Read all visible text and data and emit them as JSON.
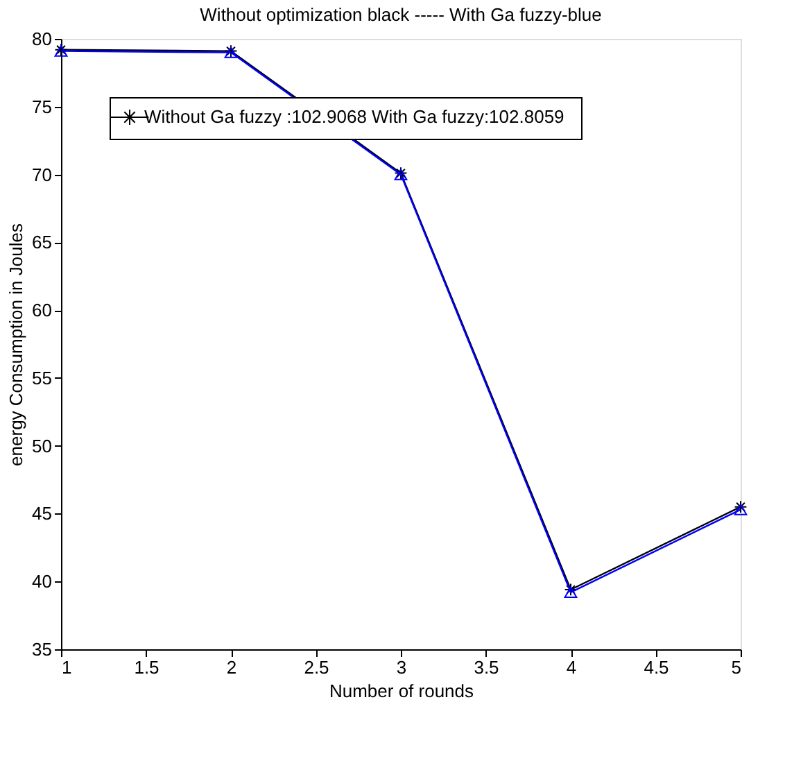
{
  "chart_data": {
    "type": "line",
    "title": "Without optimization black    ----- With Ga fuzzy-blue",
    "xlabel": "Number of rounds",
    "ylabel": "energy Consumption in Joules",
    "x": [
      1,
      2,
      3,
      4,
      5
    ],
    "series": [
      {
        "name": "Without  Ga fuzzy :102.9068 With Ga fuzzy:102.8059",
        "color": "#000000",
        "marker": "cross",
        "values": [
          79.2,
          79.1,
          70.1,
          39.4,
          45.5
        ]
      },
      {
        "color": "#0000ff",
        "marker": "triangle",
        "values": [
          79.1,
          79.0,
          70.0,
          39.2,
          45.3
        ]
      }
    ],
    "xlim": [
      1,
      5
    ],
    "xticks": [
      1,
      1.5,
      2,
      2.5,
      3,
      3.5,
      4,
      4.5,
      5
    ],
    "ylim": [
      35,
      80
    ],
    "yticks": [
      35,
      40,
      45,
      50,
      55,
      60,
      65,
      70,
      75,
      80
    ],
    "grid": false,
    "legend": "top left",
    "line_style": "solid"
  }
}
